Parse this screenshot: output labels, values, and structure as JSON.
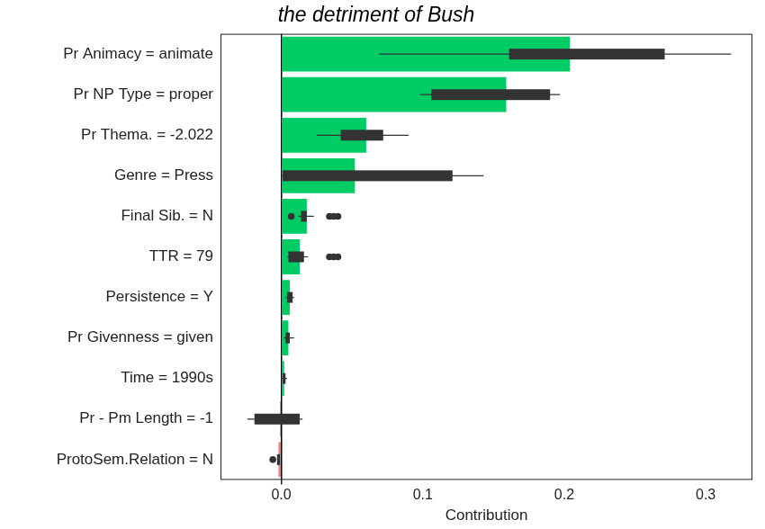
{
  "chart_data": {
    "type": "bar",
    "orientation": "horizontal",
    "title": "the detriment of Bush",
    "x_label": "Contribution",
    "categories": [
      "Pr Animacy = animate",
      "Pr NP Type = proper",
      "Pr Thema. = -2.022",
      "Genre = Press",
      "Final Sib. = N",
      "TTR = 79",
      "Persistence = Y",
      "Pr Givenness = given",
      "Time = 1990s",
      "Pr - Pm Length = -1",
      "ProtoSem.Relation = N"
    ],
    "values": [
      0.204,
      0.159,
      0.06,
      0.052,
      0.018,
      0.013,
      0.006,
      0.005,
      0.002,
      -0.001,
      -0.002
    ],
    "colors": [
      "#00cc66",
      "#00cc66",
      "#00cc66",
      "#00cc66",
      "#00cc66",
      "#00cc66",
      "#00cc66",
      "#00cc66",
      "#00cc66",
      "#f8766d",
      "#f8766d"
    ],
    "boxplots": [
      {
        "box": [
          0.161,
          0.271
        ],
        "whiskers": [
          0.069,
          0.318
        ],
        "outliers": []
      },
      {
        "box": [
          0.106,
          0.19
        ],
        "whiskers": [
          0.098,
          0.197
        ],
        "outliers": []
      },
      {
        "box": [
          0.042,
          0.072
        ],
        "whiskers": [
          0.025,
          0.09
        ],
        "outliers": []
      },
      {
        "box": [
          0.001,
          0.121
        ],
        "whiskers": [
          0.0,
          0.143
        ],
        "outliers": []
      },
      {
        "box": [
          0.014,
          0.018
        ],
        "whiskers": [
          0.012,
          0.023
        ],
        "outliers": [
          0.007,
          0.034,
          0.037,
          0.04
        ]
      },
      {
        "box": [
          0.005,
          0.016
        ],
        "whiskers": [
          0.004,
          0.019
        ],
        "outliers": [
          0.034,
          0.037,
          0.04
        ]
      },
      {
        "box": [
          0.004,
          0.008
        ],
        "whiskers": [
          0.003,
          0.009
        ],
        "outliers": []
      },
      {
        "box": [
          0.003,
          0.006
        ],
        "whiskers": [
          0.002,
          0.009
        ],
        "outliers": []
      },
      {
        "box": [
          0.001,
          0.003
        ],
        "whiskers": [
          0.0,
          0.004
        ],
        "outliers": []
      },
      {
        "box": [
          -0.019,
          0.013
        ],
        "whiskers": [
          -0.024,
          0.015
        ],
        "outliers": []
      },
      {
        "box": [
          -0.003,
          -0.001
        ],
        "whiskers": [
          -0.003,
          -0.001
        ],
        "outliers": [
          -0.006
        ]
      }
    ],
    "xlim": [
      -0.043,
      0.333
    ],
    "xticks": [
      {
        "value": 0,
        "label": "0.0"
      },
      {
        "value": 0.1,
        "label": "0.1"
      },
      {
        "value": 0.2,
        "label": "0.2"
      },
      {
        "value": 0.3,
        "label": "0.3"
      }
    ],
    "grid": false
  }
}
